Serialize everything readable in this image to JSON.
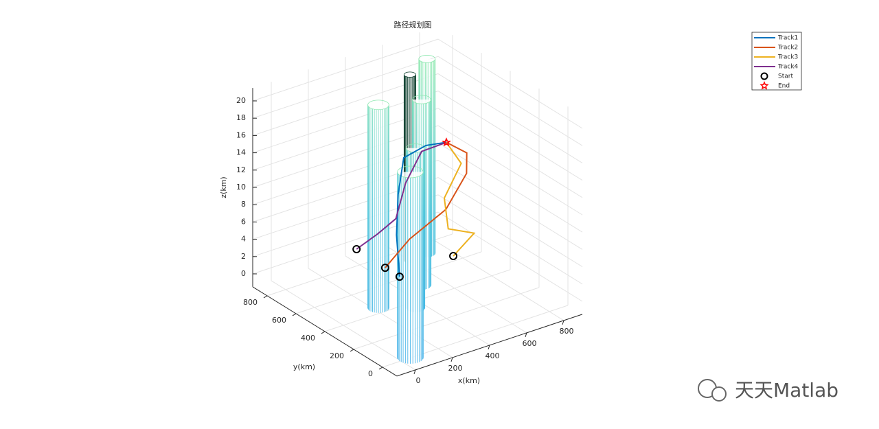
{
  "chart_data": {
    "type": "line3d",
    "title": "路径规划图",
    "xlabel": "x(km)",
    "ylabel": "y(km)",
    "zlabel": "z(km)",
    "xlim": [
      -100,
      900
    ],
    "ylim": [
      -100,
      900
    ],
    "zlim": [
      -1.5,
      21.5
    ],
    "xticks": [
      0,
      200,
      400,
      600,
      800
    ],
    "yticks": [
      0,
      200,
      400,
      600,
      800
    ],
    "zticks": [
      0,
      2,
      4,
      6,
      8,
      10,
      12,
      14,
      16,
      18,
      20
    ],
    "grid": true,
    "legend": "northeast",
    "series": [
      {
        "name": "Track1",
        "color": "#0072bd",
        "x": [
          350,
          380,
          420,
          450,
          500,
          540
        ],
        "y": [
          460,
          520,
          560,
          560,
          470,
          380
        ],
        "z": [
          1,
          5,
          9,
          13,
          15,
          16
        ]
      },
      {
        "name": "Track2",
        "color": "#d95319",
        "x": [
          350,
          450,
          600,
          680,
          650,
          540
        ],
        "y": [
          560,
          520,
          460,
          420,
          380,
          380
        ],
        "z": [
          1,
          4,
          7,
          11,
          14,
          16
        ]
      },
      {
        "name": "Track3",
        "color": "#edb120",
        "x": [
          655,
          760,
          620,
          560,
          620,
          540
        ],
        "y": [
          480,
          470,
          470,
          420,
          380,
          380
        ],
        "z": [
          1,
          3,
          4.5,
          9,
          13,
          16
        ]
      },
      {
        "name": "Track4",
        "color": "#7e2f8e",
        "x": [
          355,
          420,
          470,
          460,
          500,
          540
        ],
        "y": [
          765,
          700,
          640,
          560,
          500,
          380
        ],
        "z": [
          1,
          3,
          5,
          10,
          14,
          16
        ]
      }
    ],
    "markers": [
      {
        "name": "Start",
        "color": "#000000"
      },
      {
        "name": "End",
        "color": "#ff0000"
      }
    ],
    "obstacles": [
      {
        "x": 700,
        "y": 720,
        "r": 35,
        "h": 21
      },
      {
        "x": 600,
        "y": 710,
        "r": 25,
        "h": 20
      },
      {
        "x": 500,
        "y": 500,
        "r": 40,
        "h": 20
      },
      {
        "x": 220,
        "y": 440,
        "r": 45,
        "h": 22
      },
      {
        "x": 350,
        "y": 350,
        "r": 40,
        "h": 17
      },
      {
        "x": 50,
        "y": 0,
        "r": 55,
        "h": 20
      }
    ]
  },
  "watermark": "天天Matlab"
}
